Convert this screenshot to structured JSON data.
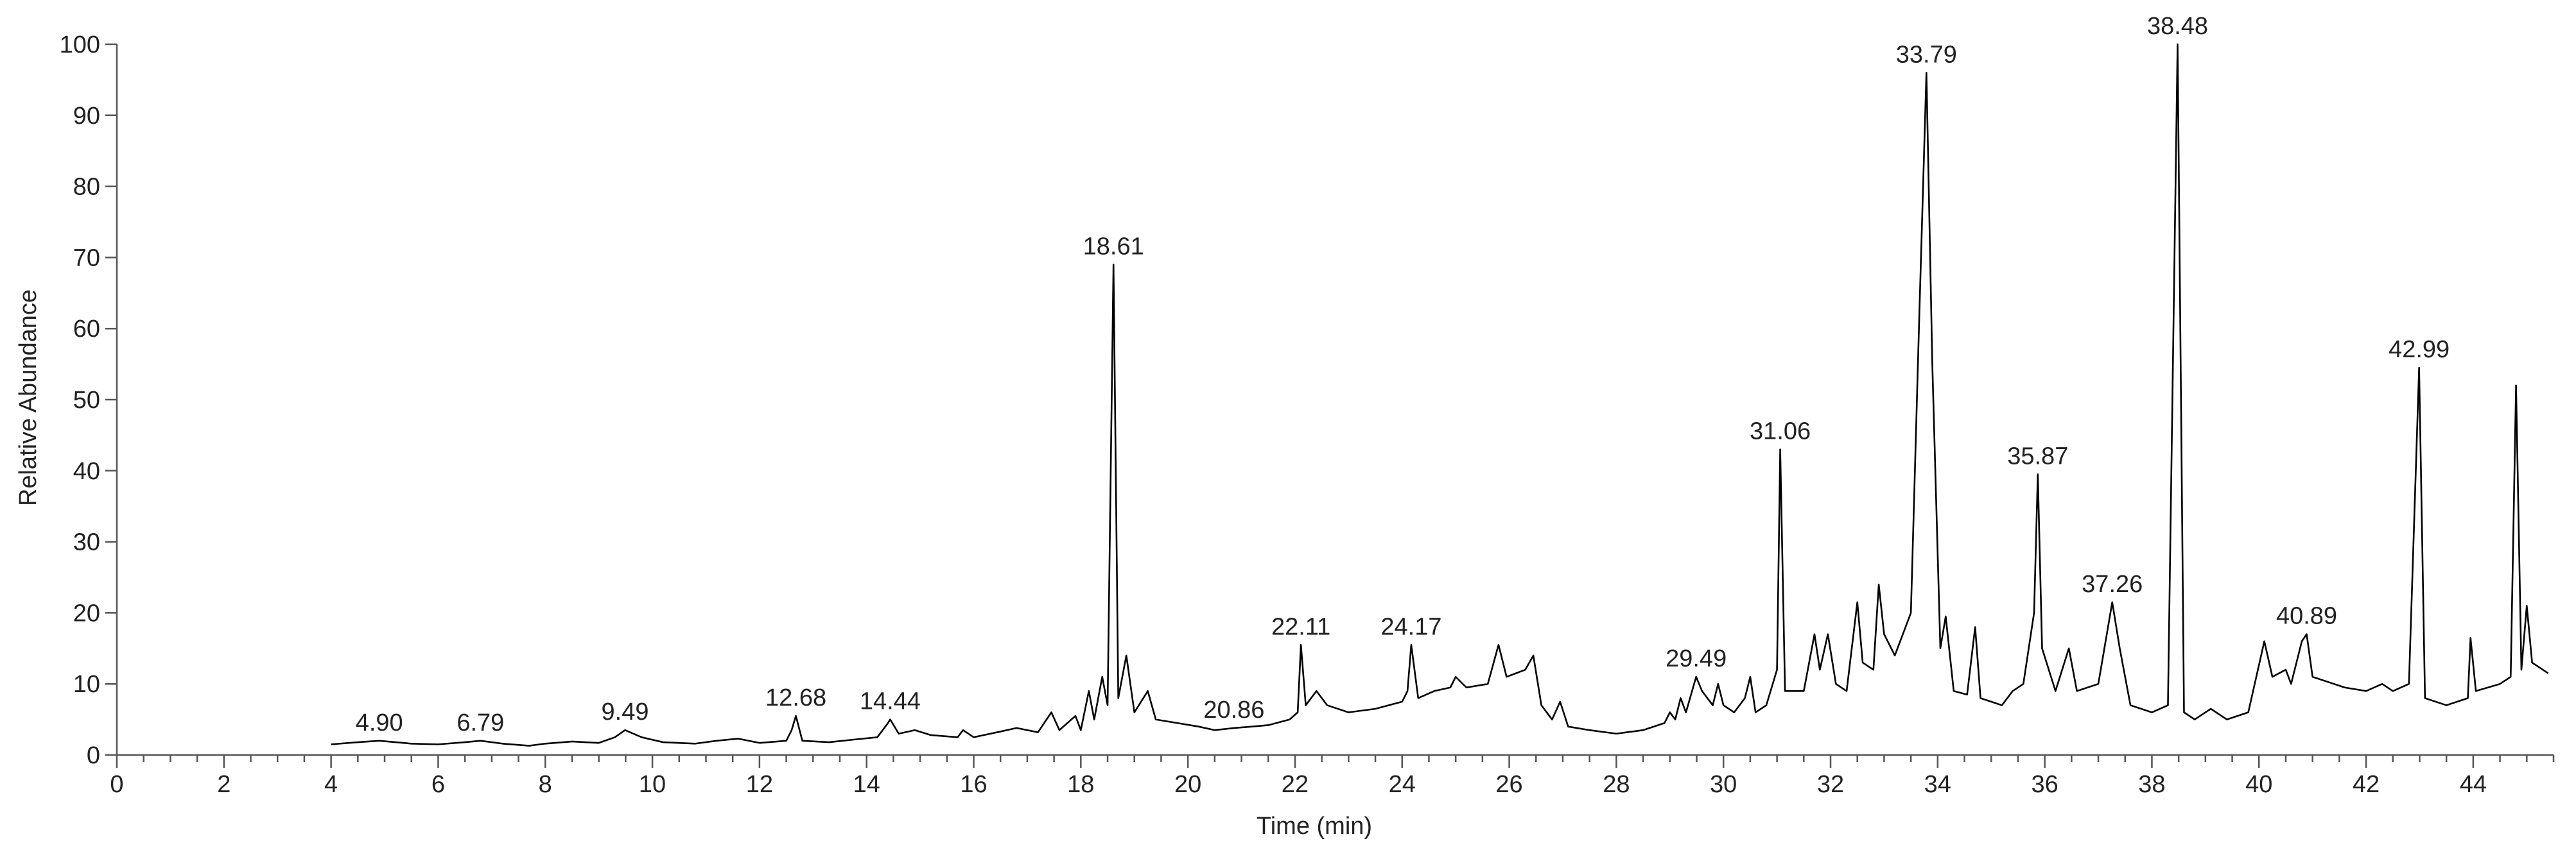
{
  "chart_data": {
    "type": "line",
    "xlabel": "Time (min)",
    "ylabel": "Relative Abundance",
    "color": "#000000",
    "xlim": [
      0,
      45.5
    ],
    "ylim": [
      0,
      100
    ],
    "xticks": [
      0,
      2,
      4,
      6,
      8,
      10,
      12,
      14,
      16,
      18,
      20,
      22,
      24,
      26,
      28,
      30,
      32,
      34,
      36,
      38,
      40,
      42,
      44
    ],
    "xminorticks": [
      0.5,
      1,
      1.5,
      2.5,
      3,
      3.5,
      4.5,
      5,
      5.5,
      6.5,
      7,
      7.5,
      8.5,
      9,
      9.5,
      10.5,
      11,
      11.5,
      12.5,
      13,
      13.5,
      14.5,
      15,
      15.5,
      16.5,
      17,
      17.5,
      18.5,
      19,
      19.5,
      20.5,
      21,
      21.5,
      22.5,
      23,
      23.5,
      24.5,
      25,
      25.5,
      26.5,
      27,
      27.5,
      28.5,
      29,
      29.5,
      30.5,
      31,
      31.5,
      32.5,
      33,
      33.5,
      34.5,
      35,
      35.5,
      36.5,
      37,
      37.5,
      38.5,
      39,
      39.5,
      40.5,
      41,
      41.5,
      42.5,
      43,
      43.5,
      44.5,
      45,
      45.5
    ],
    "yticks": [
      0,
      10,
      20,
      30,
      40,
      50,
      60,
      70,
      80,
      90,
      100
    ],
    "x": [
      4.0,
      4.5,
      4.9,
      5.5,
      6.0,
      6.5,
      6.79,
      7.2,
      7.7,
      8.0,
      8.5,
      9.0,
      9.3,
      9.49,
      9.8,
      10.2,
      10.8,
      11.2,
      11.6,
      12.0,
      12.5,
      12.6,
      12.68,
      12.8,
      13.3,
      13.8,
      14.2,
      14.4,
      14.44,
      14.6,
      14.9,
      15.2,
      15.7,
      15.8,
      16.0,
      16.5,
      16.8,
      17.2,
      17.45,
      17.6,
      17.9,
      18.0,
      18.15,
      18.25,
      18.4,
      18.5,
      18.61,
      18.7,
      18.85,
      19.0,
      19.25,
      19.4,
      19.8,
      20.2,
      20.5,
      20.86,
      21.2,
      21.5,
      21.9,
      22.05,
      22.11,
      22.2,
      22.4,
      22.6,
      23.0,
      23.5,
      24.0,
      24.1,
      24.17,
      24.3,
      24.6,
      24.9,
      25.0,
      25.2,
      25.6,
      25.8,
      25.95,
      26.3,
      26.45,
      26.6,
      26.8,
      26.95,
      27.1,
      27.5,
      28.0,
      28.5,
      28.9,
      29.0,
      29.1,
      29.2,
      29.3,
      29.49,
      29.6,
      29.8,
      29.9,
      30.0,
      30.2,
      30.4,
      30.5,
      30.6,
      30.8,
      31.0,
      31.06,
      31.15,
      31.5,
      31.7,
      31.8,
      31.95,
      32.1,
      32.3,
      32.5,
      32.6,
      32.8,
      32.9,
      33.0,
      33.2,
      33.5,
      33.65,
      33.79,
      33.9,
      34.05,
      34.15,
      34.3,
      34.55,
      34.7,
      34.8,
      35.2,
      35.4,
      35.6,
      35.8,
      35.87,
      35.95,
      36.2,
      36.45,
      36.6,
      37.0,
      37.26,
      37.4,
      37.6,
      38.0,
      38.3,
      38.48,
      38.6,
      38.8,
      39.1,
      39.4,
      39.8,
      40.1,
      40.25,
      40.5,
      40.6,
      40.8,
      40.89,
      41.0,
      41.4,
      41.6,
      42.0,
      42.3,
      42.5,
      42.8,
      42.99,
      43.1,
      43.5,
      43.9,
      43.95,
      44.05,
      44.5,
      44.7,
      44.8,
      44.9,
      45.0,
      45.1,
      45.3,
      45.4
    ],
    "values": [
      1.5,
      1.8,
      2.0,
      1.6,
      1.5,
      1.8,
      2.0,
      1.6,
      1.3,
      1.6,
      1.9,
      1.7,
      2.5,
      3.5,
      2.5,
      1.8,
      1.6,
      2.0,
      2.3,
      1.7,
      2.0,
      3.5,
      5.5,
      2.0,
      1.8,
      2.2,
      2.5,
      4.5,
      5.0,
      3.0,
      3.5,
      2.8,
      2.5,
      3.5,
      2.5,
      3.3,
      3.8,
      3.2,
      6.0,
      3.5,
      5.5,
      3.5,
      9,
      5,
      11,
      7,
      69,
      8,
      14,
      6,
      9,
      5,
      4.5,
      4,
      3.5,
      3.8,
      4,
      4.2,
      5,
      6,
      15.5,
      7,
      9,
      7,
      6,
      6.5,
      7.5,
      9,
      15.5,
      8,
      9,
      9.5,
      11,
      9.5,
      10,
      15.5,
      11,
      12,
      14,
      7,
      5,
      7.5,
      4,
      3.5,
      3,
      3.5,
      4.5,
      6,
      5,
      8,
      6,
      11,
      9,
      7,
      10,
      7,
      6,
      8,
      11,
      6,
      7,
      12,
      43,
      9,
      9,
      17,
      12,
      17,
      10,
      9,
      21.5,
      13,
      12,
      24,
      17,
      14,
      20,
      60,
      96,
      55,
      15,
      19.5,
      9,
      8.5,
      18,
      8,
      7,
      9,
      10,
      20,
      39.5,
      15,
      9,
      15,
      9,
      10,
      21.5,
      15,
      7,
      6,
      7,
      100,
      6,
      5,
      6.5,
      5,
      6,
      16,
      11,
      12,
      10,
      16,
      17,
      11,
      10,
      9.5,
      9,
      10,
      9,
      10,
      54.5,
      8,
      7,
      8,
      16.5,
      9,
      10,
      11,
      52,
      12,
      21,
      13,
      12,
      11.5
    ],
    "annotations": [
      {
        "text": "4.90",
        "x": 4.9,
        "y": 2.0
      },
      {
        "text": "6.79",
        "x": 6.79,
        "y": 2.0
      },
      {
        "text": "9.49",
        "x": 9.49,
        "y": 3.5
      },
      {
        "text": "12.68",
        "x": 12.68,
        "y": 5.5
      },
      {
        "text": "14.44",
        "x": 14.44,
        "y": 5.0
      },
      {
        "text": "18.61",
        "x": 18.61,
        "y": 69
      },
      {
        "text": "20.86",
        "x": 20.86,
        "y": 3.8
      },
      {
        "text": "22.11",
        "x": 22.11,
        "y": 15.5
      },
      {
        "text": "24.17",
        "x": 24.17,
        "y": 15.5
      },
      {
        "text": "29.49",
        "x": 29.49,
        "y": 11
      },
      {
        "text": "31.06",
        "x": 31.06,
        "y": 43
      },
      {
        "text": "33.79",
        "x": 33.79,
        "y": 96
      },
      {
        "text": "35.87",
        "x": 35.87,
        "y": 39.5
      },
      {
        "text": "37.26",
        "x": 37.26,
        "y": 21.5
      },
      {
        "text": "38.48",
        "x": 38.48,
        "y": 100
      },
      {
        "text": "40.89",
        "x": 40.89,
        "y": 17
      },
      {
        "text": "42.99",
        "x": 42.99,
        "y": 54.5
      }
    ]
  }
}
